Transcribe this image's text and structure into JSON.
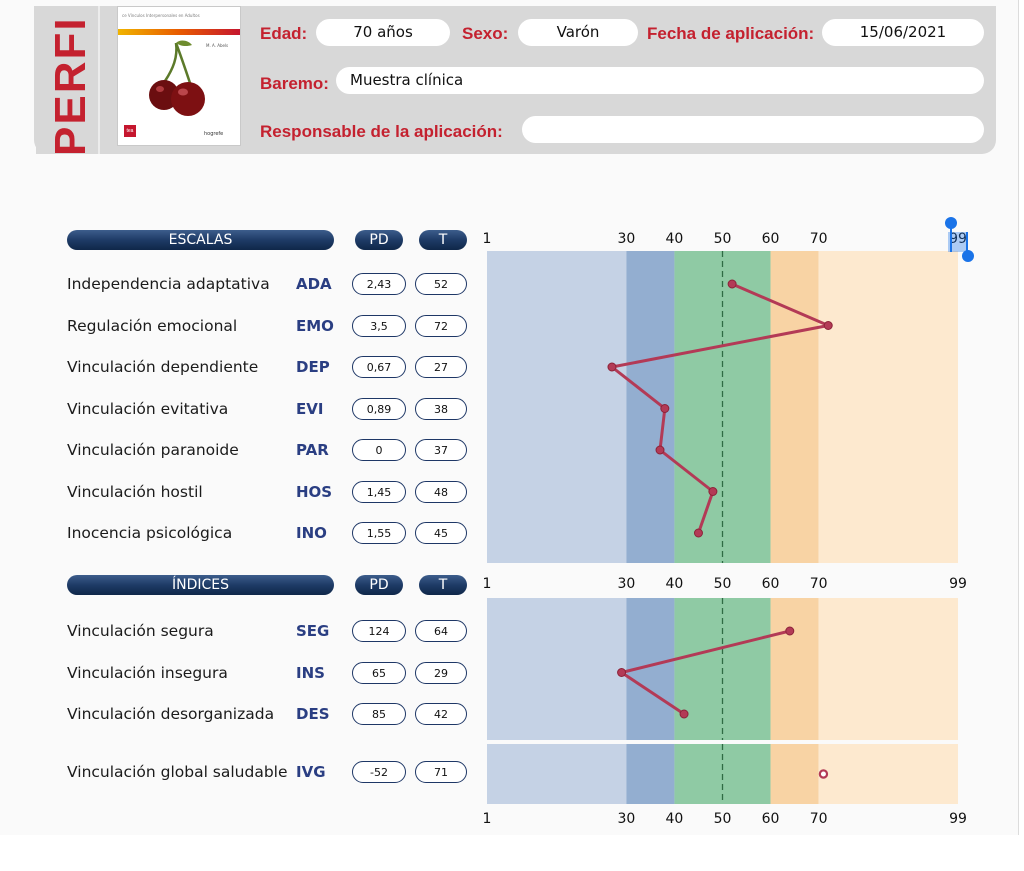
{
  "header": {
    "side_title": "PERFI",
    "book": {
      "subtitle": "ce Vínculos Interpersonales en Adultos",
      "author": "M. A. Abels",
      "publisher_tea": "tea",
      "publisher_hogrefe": "hogrefe"
    },
    "edad_label": "Edad:",
    "edad_value": "70 años",
    "sexo_label": "Sexo:",
    "sexo_value": "Varón",
    "fecha_label": "Fecha de aplicación:",
    "fecha_value": "15/06/2021",
    "baremo_label": "Baremo:",
    "baremo_value": "Muestra clínica",
    "responsable_label": "Responsable de la aplicación:",
    "responsable_value": ""
  },
  "escalas": {
    "title": "ESCALAS",
    "pd_label": "PD",
    "t_label": "T",
    "rows": [
      {
        "name": "Independencia adaptativa",
        "code": "ADA",
        "pd": "2,43",
        "t": "52"
      },
      {
        "name": "Regulación emocional",
        "code": "EMO",
        "pd": "3,5",
        "t": "72"
      },
      {
        "name": "Vinculación dependiente",
        "code": "DEP",
        "pd": "0,67",
        "t": "27"
      },
      {
        "name": "Vinculación evitativa",
        "code": "EVI",
        "pd": "0,89",
        "t": "38"
      },
      {
        "name": "Vinculación paranoide",
        "code": "PAR",
        "pd": "0",
        "t": "37"
      },
      {
        "name": "Vinculación hostil",
        "code": "HOS",
        "pd": "1,45",
        "t": "48"
      },
      {
        "name": "Inocencia psicológica",
        "code": "INO",
        "pd": "1,55",
        "t": "45"
      }
    ]
  },
  "indices": {
    "title": "ÍNDICES",
    "pd_label": "PD",
    "t_label": "T",
    "rows": [
      {
        "name": "Vinculación segura",
        "code": "SEG",
        "pd": "124",
        "t": "64"
      },
      {
        "name": "Vinculación insegura",
        "code": "INS",
        "pd": "65",
        "t": "29"
      },
      {
        "name": "Vinculación desorganizada",
        "code": "DES",
        "pd": "85",
        "t": "42"
      }
    ],
    "global_row": {
      "name": "Vinculación global saludable",
      "code": "IVG",
      "pd": "-52",
      "t": "71"
    }
  },
  "axis": {
    "ticks": [
      "1",
      "30",
      "40",
      "50",
      "60",
      "70",
      "99"
    ],
    "selected_tick": "99"
  },
  "colors": {
    "accent_red": "#c4212f",
    "navy": "#1e3b66",
    "band_low": "#c5d2e5",
    "band_mid_low": "#93aed0",
    "band_average": "#8fcaa4",
    "band_mid_high": "#f8d3a4",
    "band_high": "#fde9cf",
    "profile_line": "#b33a56"
  },
  "chart_data": {
    "type": "line",
    "title": "",
    "xlabel": "",
    "ylabel": "",
    "xlim": [
      1,
      99
    ],
    "x_ticks": [
      1,
      30,
      40,
      50,
      60,
      70,
      99
    ],
    "bands": [
      {
        "from": 1,
        "to": 30
      },
      {
        "from": 30,
        "to": 40
      },
      {
        "from": 40,
        "to": 60
      },
      {
        "from": 60,
        "to": 70
      },
      {
        "from": 70,
        "to": 99
      }
    ],
    "reference_line": 50,
    "series": [
      {
        "categories": [
          "ADA",
          "EMO",
          "DEP",
          "EVI",
          "PAR",
          "HOS",
          "INO"
        ],
        "values": [
          52,
          72,
          27,
          38,
          37,
          48,
          45
        ]
      },
      {
        "categories": [
          "SEG",
          "INS",
          "DES"
        ],
        "values": [
          64,
          29,
          42
        ]
      },
      {
        "categories": [
          "IVG"
        ],
        "values": [
          71
        ]
      }
    ]
  }
}
